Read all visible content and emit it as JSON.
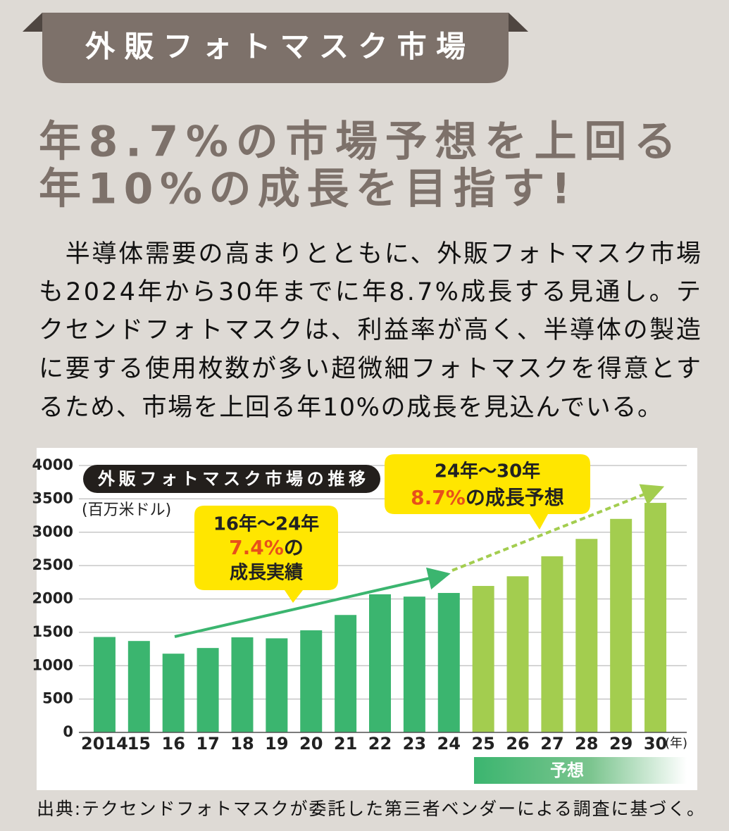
{
  "header": {
    "tab": "外販フォトマスク市場",
    "headline": [
      "年8.7%の市場予想を上回る",
      "年10%の成長を目指す!"
    ]
  },
  "body": [
    "　半導体需要の高まりとともに、外販フォトマスク市場",
    "も2024年から30年までに年8.7%成長する見通し。テ",
    "クセンドフォトマスクは、利益率が高く、半導体の製造",
    "に要する使用枚数が多い超微細フォトマスクを得意とす",
    "るため、市場を上回る年10%の成長を見込んでいる。"
  ],
  "chart_data": {
    "type": "bar",
    "title": "外販フォトマスク市場の推移",
    "y_unit": "(百万米ドル)",
    "x_unit": "(年)",
    "categories": [
      "2014",
      "15",
      "16",
      "17",
      "18",
      "19",
      "20",
      "21",
      "22",
      "23",
      "24",
      "25",
      "26",
      "27",
      "28",
      "29",
      "30"
    ],
    "values": [
      1430,
      1370,
      1180,
      1265,
      1425,
      1410,
      1530,
      1760,
      2070,
      2035,
      2090,
      2195,
      2340,
      2640,
      2900,
      3200,
      3440
    ],
    "colors": [
      "#3bb56f",
      "#3bb56f",
      "#3bb56f",
      "#3bb56f",
      "#3bb56f",
      "#3bb56f",
      "#3bb56f",
      "#3bb56f",
      "#3bb56f",
      "#3bb56f",
      "#3bb56f",
      "#a3cd4f",
      "#a3cd4f",
      "#a3cd4f",
      "#a3cd4f",
      "#a3cd4f",
      "#a3cd4f"
    ],
    "ylim": [
      0,
      4000
    ],
    "yticks": [
      0,
      500,
      1000,
      1500,
      2000,
      2500,
      3000,
      3500,
      4000
    ],
    "grid": true,
    "callout_actual": [
      "16年～24年",
      "7.4%",
      "の",
      "成長実績"
    ],
    "callout_forecast": [
      "24年～30年",
      "8.7%",
      "の成長予想"
    ],
    "forecast_label": "予想"
  },
  "source": "出典:テクセンドフォトマスクが委託した第三者ベンダーによる調査に基づく。"
}
